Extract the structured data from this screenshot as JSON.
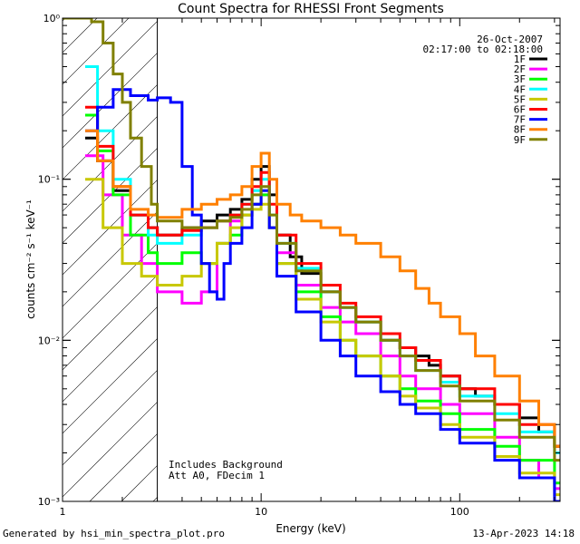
{
  "chart_data": {
    "type": "line",
    "title": "Count Spectra for RHESSI Front Segments",
    "xlabel": "Energy (keV)",
    "ylabel": "counts cm⁻² s⁻¹ keV⁻¹",
    "xscale": "log",
    "yscale": "log",
    "xlim": [
      1,
      320
    ],
    "ylim": [
      0.001,
      1
    ],
    "x_ticks": [
      {
        "value": 1,
        "label": "1"
      },
      {
        "value": 10,
        "label": "10"
      },
      {
        "value": 100,
        "label": "100"
      }
    ],
    "y_ticks": [
      {
        "value": 0.001,
        "label": "10⁻³"
      },
      {
        "value": 0.01,
        "label": "10⁻²"
      },
      {
        "value": 0.1,
        "label": "10⁻¹"
      },
      {
        "value": 1,
        "label": "10⁰"
      }
    ],
    "date": "26-Oct-2007",
    "time_range": "02:17:00 to 02:18:00",
    "annotation_lines": [
      "Includes Background",
      "Att A0, FDecim 1"
    ],
    "shaded_region_max_energy": 3,
    "series": [
      {
        "name": "1F",
        "color": "#000000",
        "points": [
          [
            1.3,
            0.18
          ],
          [
            1.5,
            0.13
          ],
          [
            1.8,
            0.085
          ],
          [
            2.2,
            0.06
          ],
          [
            2.7,
            0.05
          ],
          [
            3,
            0.045
          ],
          [
            4,
            0.05
          ],
          [
            5,
            0.055
          ],
          [
            6,
            0.06
          ],
          [
            7,
            0.065
          ],
          [
            8,
            0.075
          ],
          [
            9,
            0.1
          ],
          [
            10,
            0.12
          ],
          [
            11,
            0.08
          ],
          [
            12,
            0.045
          ],
          [
            14,
            0.033
          ],
          [
            16,
            0.026
          ],
          [
            20,
            0.02
          ],
          [
            25,
            0.016
          ],
          [
            30,
            0.013
          ],
          [
            40,
            0.01
          ],
          [
            50,
            0.009
          ],
          [
            60,
            0.008
          ],
          [
            70,
            0.007
          ],
          [
            80,
            0.006
          ],
          [
            100,
            0.005
          ],
          [
            120,
            0.0045
          ],
          [
            150,
            0.004
          ],
          [
            200,
            0.0033
          ],
          [
            250,
            0.0027
          ],
          [
            300,
            0.0022
          ]
        ]
      },
      {
        "name": "2F",
        "color": "#ff00ff",
        "points": [
          [
            1.3,
            0.14
          ],
          [
            1.6,
            0.08
          ],
          [
            2,
            0.045
          ],
          [
            2.5,
            0.03
          ],
          [
            3,
            0.02
          ],
          [
            4,
            0.017
          ],
          [
            5,
            0.02
          ],
          [
            6,
            0.04
          ],
          [
            7,
            0.055
          ],
          [
            8,
            0.06
          ],
          [
            9,
            0.07
          ],
          [
            10,
            0.08
          ],
          [
            11,
            0.05
          ],
          [
            12,
            0.035
          ],
          [
            15,
            0.022
          ],
          [
            20,
            0.016
          ],
          [
            25,
            0.013
          ],
          [
            30,
            0.011
          ],
          [
            40,
            0.008
          ],
          [
            50,
            0.006
          ],
          [
            60,
            0.005
          ],
          [
            80,
            0.004
          ],
          [
            100,
            0.0035
          ],
          [
            150,
            0.0025
          ],
          [
            200,
            0.0018
          ],
          [
            250,
            0.0014
          ],
          [
            300,
            0.0012
          ]
        ]
      },
      {
        "name": "3F",
        "color": "#00ff00",
        "points": [
          [
            1.3,
            0.25
          ],
          [
            1.5,
            0.15
          ],
          [
            1.8,
            0.08
          ],
          [
            2.2,
            0.045
          ],
          [
            2.7,
            0.035
          ],
          [
            3,
            0.03
          ],
          [
            4,
            0.035
          ],
          [
            5,
            0.03
          ],
          [
            6,
            0.04
          ],
          [
            7,
            0.045
          ],
          [
            8,
            0.06
          ],
          [
            9,
            0.07
          ],
          [
            10,
            0.08
          ],
          [
            11,
            0.05
          ],
          [
            12,
            0.03
          ],
          [
            15,
            0.02
          ],
          [
            20,
            0.014
          ],
          [
            25,
            0.01
          ],
          [
            30,
            0.008
          ],
          [
            40,
            0.006
          ],
          [
            50,
            0.005
          ],
          [
            60,
            0.0042
          ],
          [
            80,
            0.0035
          ],
          [
            100,
            0.0028
          ],
          [
            150,
            0.0022
          ],
          [
            200,
            0.0018
          ],
          [
            300,
            0.0013
          ]
        ]
      },
      {
        "name": "4F",
        "color": "#00ffff",
        "points": [
          [
            1.3,
            0.5
          ],
          [
            1.5,
            0.2
          ],
          [
            1.8,
            0.1
          ],
          [
            2.2,
            0.06
          ],
          [
            2.7,
            0.045
          ],
          [
            3,
            0.04
          ],
          [
            4,
            0.045
          ],
          [
            5,
            0.05
          ],
          [
            6,
            0.055
          ],
          [
            7,
            0.06
          ],
          [
            8,
            0.07
          ],
          [
            9,
            0.085
          ],
          [
            10,
            0.1
          ],
          [
            11,
            0.06
          ],
          [
            12,
            0.04
          ],
          [
            15,
            0.028
          ],
          [
            20,
            0.02
          ],
          [
            25,
            0.016
          ],
          [
            30,
            0.013
          ],
          [
            40,
            0.01
          ],
          [
            50,
            0.008
          ],
          [
            60,
            0.0065
          ],
          [
            80,
            0.0055
          ],
          [
            100,
            0.0045
          ],
          [
            150,
            0.0035
          ],
          [
            200,
            0.0027
          ],
          [
            300,
            0.002
          ]
        ]
      },
      {
        "name": "5F",
        "color": "#c8c800",
        "points": [
          [
            1.3,
            0.1
          ],
          [
            1.6,
            0.05
          ],
          [
            2,
            0.03
          ],
          [
            2.5,
            0.025
          ],
          [
            3,
            0.022
          ],
          [
            4,
            0.025
          ],
          [
            5,
            0.03
          ],
          [
            6,
            0.04
          ],
          [
            7,
            0.05
          ],
          [
            8,
            0.06
          ],
          [
            9,
            0.065
          ],
          [
            10,
            0.07
          ],
          [
            11,
            0.05
          ],
          [
            12,
            0.03
          ],
          [
            15,
            0.018
          ],
          [
            20,
            0.013
          ],
          [
            25,
            0.01
          ],
          [
            30,
            0.008
          ],
          [
            40,
            0.006
          ],
          [
            50,
            0.0045
          ],
          [
            60,
            0.0038
          ],
          [
            80,
            0.003
          ],
          [
            100,
            0.0025
          ],
          [
            150,
            0.0019
          ],
          [
            200,
            0.0015
          ],
          [
            300,
            0.0011
          ]
        ]
      },
      {
        "name": "6F",
        "color": "#ff0000",
        "points": [
          [
            1.3,
            0.28
          ],
          [
            1.5,
            0.16
          ],
          [
            1.8,
            0.09
          ],
          [
            2.2,
            0.06
          ],
          [
            2.7,
            0.05
          ],
          [
            3,
            0.045
          ],
          [
            4,
            0.048
          ],
          [
            5,
            0.05
          ],
          [
            6,
            0.055
          ],
          [
            7,
            0.06
          ],
          [
            8,
            0.07
          ],
          [
            9,
            0.09
          ],
          [
            10,
            0.11
          ],
          [
            11,
            0.07
          ],
          [
            12,
            0.045
          ],
          [
            15,
            0.03
          ],
          [
            20,
            0.022
          ],
          [
            25,
            0.017
          ],
          [
            30,
            0.014
          ],
          [
            40,
            0.011
          ],
          [
            50,
            0.009
          ],
          [
            60,
            0.0075
          ],
          [
            80,
            0.006
          ],
          [
            100,
            0.005
          ],
          [
            150,
            0.004
          ],
          [
            200,
            0.003
          ],
          [
            300,
            0.0022
          ]
        ]
      },
      {
        "name": "7F",
        "color": "#0000ff",
        "points": [
          [
            1.3,
            0.2
          ],
          [
            1.5,
            0.28
          ],
          [
            1.8,
            0.36
          ],
          [
            2.2,
            0.33
          ],
          [
            2.7,
            0.31
          ],
          [
            3,
            0.32
          ],
          [
            3.5,
            0.3
          ],
          [
            4,
            0.12
          ],
          [
            4.5,
            0.06
          ],
          [
            5,
            0.03
          ],
          [
            5.5,
            0.02
          ],
          [
            6,
            0.018
          ],
          [
            6.5,
            0.03
          ],
          [
            7,
            0.04
          ],
          [
            8,
            0.05
          ],
          [
            9,
            0.07
          ],
          [
            10,
            0.085
          ],
          [
            11,
            0.05
          ],
          [
            12,
            0.025
          ],
          [
            15,
            0.015
          ],
          [
            20,
            0.01
          ],
          [
            25,
            0.008
          ],
          [
            30,
            0.006
          ],
          [
            40,
            0.0048
          ],
          [
            50,
            0.004
          ],
          [
            60,
            0.0035
          ],
          [
            80,
            0.0028
          ],
          [
            100,
            0.0023
          ],
          [
            150,
            0.0018
          ],
          [
            200,
            0.0014
          ],
          [
            300,
            0.001
          ]
        ]
      },
      {
        "name": "8F",
        "color": "#ff8000",
        "points": [
          [
            1.3,
            0.2
          ],
          [
            1.5,
            0.13
          ],
          [
            1.8,
            0.09
          ],
          [
            2.2,
            0.065
          ],
          [
            2.7,
            0.06
          ],
          [
            3,
            0.058
          ],
          [
            4,
            0.065
          ],
          [
            5,
            0.07
          ],
          [
            6,
            0.075
          ],
          [
            7,
            0.08
          ],
          [
            8,
            0.09
          ],
          [
            9,
            0.12
          ],
          [
            10,
            0.145
          ],
          [
            11,
            0.1
          ],
          [
            12,
            0.07
          ],
          [
            14,
            0.06
          ],
          [
            16,
            0.055
          ],
          [
            20,
            0.05
          ],
          [
            25,
            0.045
          ],
          [
            30,
            0.04
          ],
          [
            40,
            0.033
          ],
          [
            50,
            0.027
          ],
          [
            60,
            0.021
          ],
          [
            70,
            0.017
          ],
          [
            80,
            0.014
          ],
          [
            100,
            0.011
          ],
          [
            120,
            0.008
          ],
          [
            150,
            0.006
          ],
          [
            200,
            0.0042
          ],
          [
            250,
            0.003
          ],
          [
            300,
            0.0022
          ]
        ]
      },
      {
        "name": "9F",
        "color": "#808000",
        "points": [
          [
            1,
            1
          ],
          [
            1.2,
            1
          ],
          [
            1.4,
            0.95
          ],
          [
            1.6,
            0.7
          ],
          [
            1.8,
            0.45
          ],
          [
            2,
            0.3
          ],
          [
            2.2,
            0.18
          ],
          [
            2.5,
            0.12
          ],
          [
            2.8,
            0.07
          ],
          [
            3,
            0.055
          ],
          [
            4,
            0.05
          ],
          [
            5,
            0.05
          ],
          [
            6,
            0.055
          ],
          [
            7,
            0.058
          ],
          [
            8,
            0.065
          ],
          [
            9,
            0.08
          ],
          [
            10,
            0.09
          ],
          [
            11,
            0.06
          ],
          [
            12,
            0.04
          ],
          [
            15,
            0.027
          ],
          [
            20,
            0.02
          ],
          [
            25,
            0.016
          ],
          [
            30,
            0.013
          ],
          [
            40,
            0.01
          ],
          [
            50,
            0.008
          ],
          [
            60,
            0.0065
          ],
          [
            80,
            0.0052
          ],
          [
            100,
            0.0042
          ],
          [
            150,
            0.0032
          ],
          [
            200,
            0.0025
          ],
          [
            300,
            0.0018
          ]
        ]
      }
    ]
  },
  "footer": {
    "generated_by": "Generated by hsi_min_spectra_plot.pro",
    "timestamp": "13-Apr-2023 14:18"
  }
}
